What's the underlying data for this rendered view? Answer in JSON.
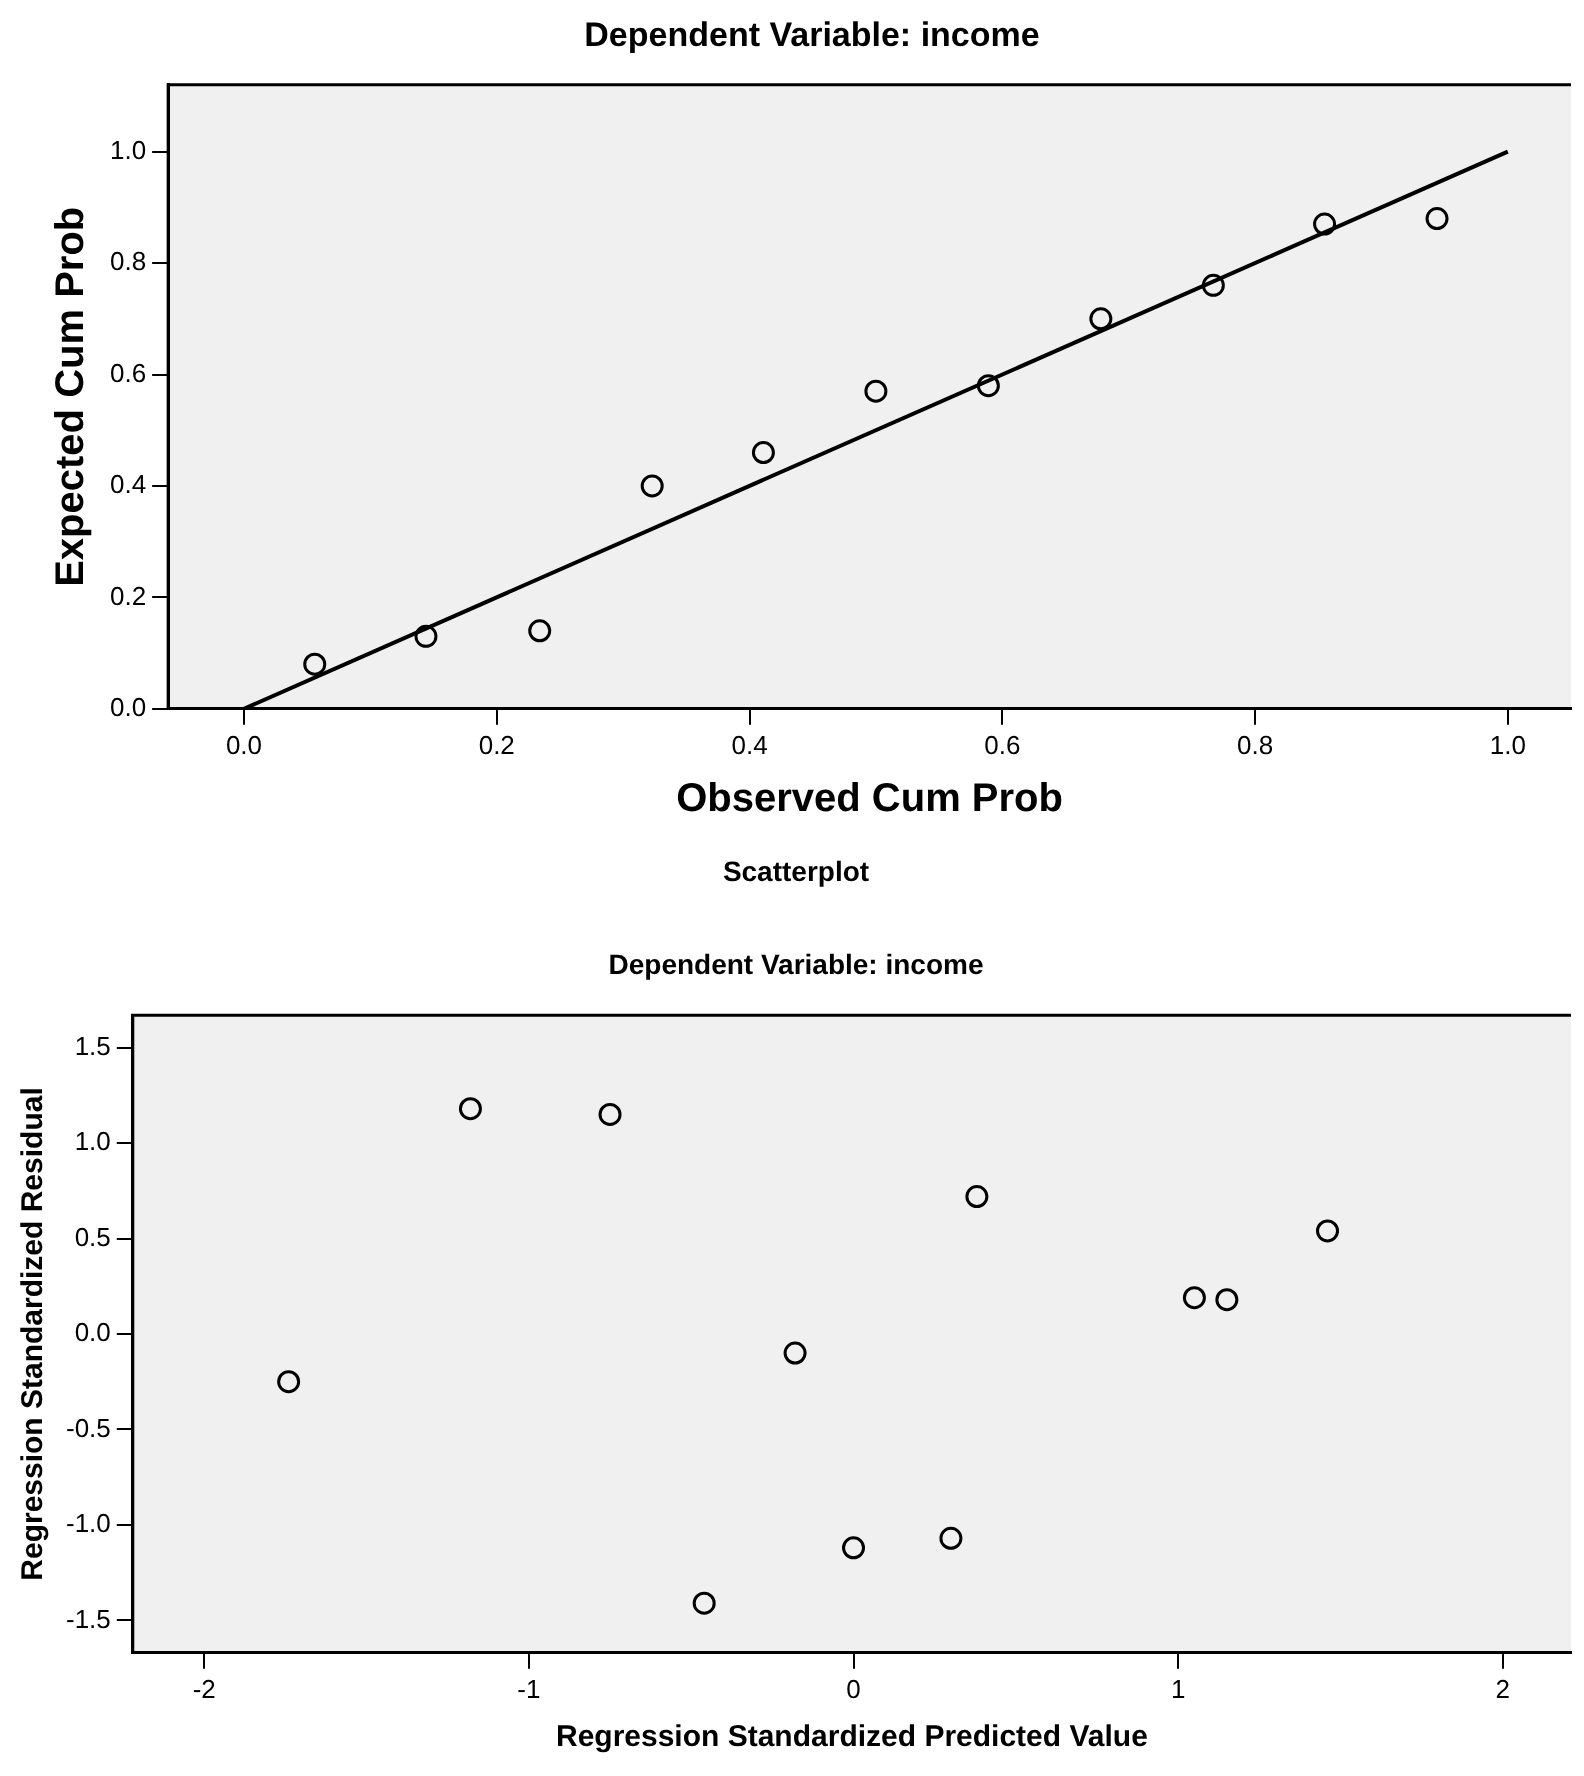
{
  "chart_data": [
    {
      "type": "scatter",
      "title": "Dependent Variable: income",
      "xlabel": "Observed Cum Prob",
      "ylabel": "Expected Cum Prob",
      "xlim": [
        -0.06,
        1.05
      ],
      "ylim": [
        0,
        1.12
      ],
      "xticks": [
        {
          "value": 0,
          "label": "0.0"
        },
        {
          "value": 0.2,
          "label": "0.2"
        },
        {
          "value": 0.4,
          "label": "0.4"
        },
        {
          "value": 0.6,
          "label": "0.6"
        },
        {
          "value": 0.8,
          "label": "0.8"
        },
        {
          "value": 1,
          "label": "1.0"
        }
      ],
      "yticks": [
        {
          "value": 0,
          "label": "0.0"
        },
        {
          "value": 0.2,
          "label": "0.2"
        },
        {
          "value": 0.4,
          "label": "0.4"
        },
        {
          "value": 0.6,
          "label": "0.6"
        },
        {
          "value": 0.8,
          "label": "0.8"
        },
        {
          "value": 1,
          "label": "1.0"
        }
      ],
      "grid": false,
      "legend": false,
      "marker": "circle",
      "series": [
        {
          "type": "scatter",
          "color": "#000000",
          "x": [
            0.056,
            0.144,
            0.234,
            0.323,
            0.411,
            0.5,
            0.589,
            0.678,
            0.767,
            0.855,
            0.944
          ],
          "values": [
            0.08,
            0.13,
            0.14,
            0.4,
            0.46,
            0.57,
            0.58,
            0.7,
            0.76,
            0.87,
            0.88
          ]
        },
        {
          "type": "line",
          "color": "#000000",
          "marker": "none",
          "x": [
            0,
            1
          ],
          "values": [
            0,
            1
          ]
        }
      ]
    },
    {
      "type": "scatter",
      "title": "Scatterplot",
      "subtitle": "Dependent Variable: income",
      "xlabel": "Regression Standardized Predicted Value",
      "ylabel": "Regression Standardized Residual",
      "xlim": [
        -2.22,
        2.21
      ],
      "ylim": [
        -1.67,
        1.67
      ],
      "xticks": [
        -2,
        -1,
        0,
        1,
        2
      ],
      "yticks": [
        {
          "value": -1.5,
          "label": "-1.5"
        },
        {
          "value": -1,
          "label": "-1.0"
        },
        {
          "value": -0.5,
          "label": "-0.5"
        },
        {
          "value": 0,
          "label": "0.0"
        },
        {
          "value": 0.5,
          "label": "0.5"
        },
        {
          "value": 1,
          "label": "1.0"
        },
        {
          "value": 1.5,
          "label": "1.5"
        }
      ],
      "grid": false,
      "legend": false,
      "marker": "circle",
      "series": [
        {
          "type": "scatter",
          "color": "#000000",
          "x": [
            -1.74,
            -1.18,
            -0.75,
            -0.46,
            -0.18,
            0.0,
            0.3,
            0.38,
            1.05,
            1.15,
            1.46
          ],
          "values": [
            -0.25,
            1.18,
            1.15,
            -1.41,
            -0.1,
            -1.12,
            -1.07,
            0.72,
            0.19,
            0.18,
            0.54
          ]
        }
      ]
    }
  ]
}
